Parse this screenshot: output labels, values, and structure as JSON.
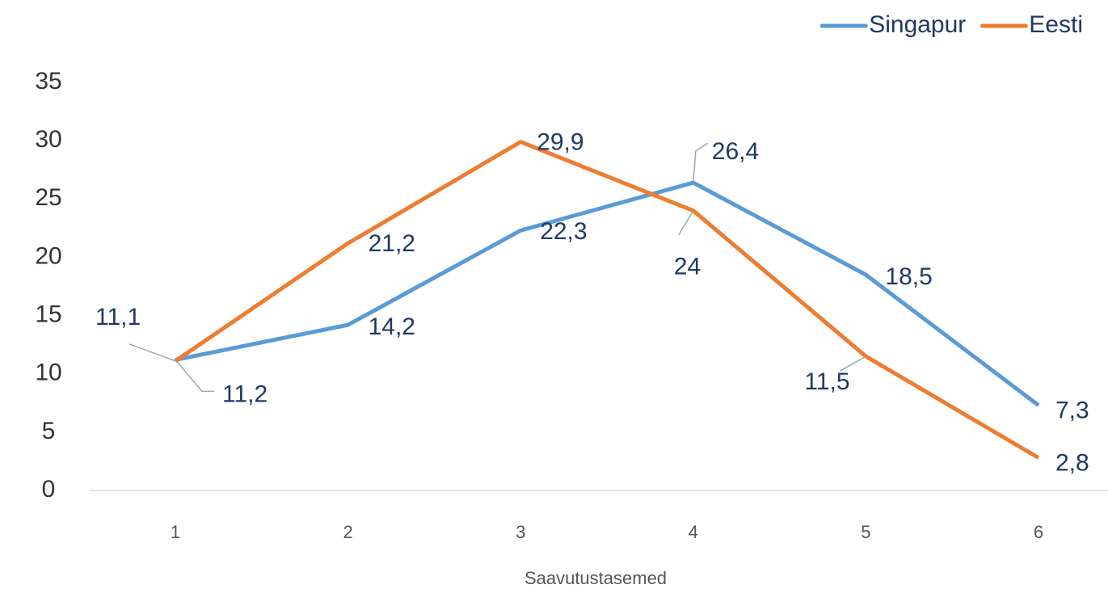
{
  "chart_data": {
    "type": "line",
    "x_label": "Saavutustasemed",
    "categories": [
      "1",
      "2",
      "3",
      "4",
      "5",
      "6"
    ],
    "series": [
      {
        "name": "Singapur",
        "color": "#5b9bd5",
        "values": [
          11.2,
          14.2,
          22.3,
          26.4,
          18.5,
          7.3
        ],
        "value_labels": [
          "11,2",
          "14,2",
          "22,3",
          "26,4",
          "18,5",
          "7,3"
        ]
      },
      {
        "name": "Eesti",
        "color": "#ed7d31",
        "values": [
          11.1,
          21.2,
          29.9,
          24,
          11.5,
          2.8
        ],
        "value_labels": [
          "11,1",
          "21,2",
          "29,9",
          "24",
          "11,5",
          "2,8"
        ]
      }
    ],
    "ylim": [
      0,
      35
    ],
    "yticks": [
      0,
      5,
      10,
      15,
      20,
      25,
      30,
      35
    ],
    "legend": "top-right"
  }
}
